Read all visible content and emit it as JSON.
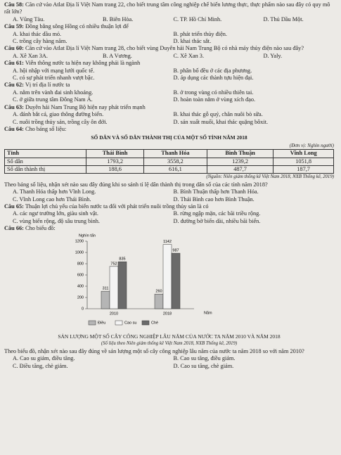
{
  "questions": [
    {
      "label": "Câu 58:",
      "stem": "Căn cứ vào Atlat Địa lí Việt Nam trang 22, cho biết trung tâm công nghiệp chế biến lương thực, thực phẩm nào sau đây có quy mô rất lớn?",
      "options": [
        "A. Vũng Tàu.",
        "B. Biên Hòa.",
        "C. TP. Hồ Chí Minh.",
        "D. Thủ Dầu Một."
      ]
    },
    {
      "label": "Câu 59:",
      "stem": "Đồng bằng sông Hồng có nhiều thuận lợi để",
      "options": [
        "A. khai thác dầu mỏ.",
        "B. phát triển thủy điện.",
        "C. trồng cây hàng năm.",
        "D. khai thác sắt."
      ]
    },
    {
      "label": "Câu 60:",
      "stem": "Căn cứ vào Atlat Địa lí Việt Nam trang 28, cho biết vùng Duyên hải Nam Trung Bộ có nhà máy thủy điện nào sau đây?",
      "options": [
        "A. Xê Xan 3A.",
        "B. A Vương.",
        "C. Xê Xan 3.",
        "D. Yaly."
      ]
    },
    {
      "label": "Câu 61:",
      "stem": "Viễn thông nước ta hiện nay không phải là ngành",
      "options": [
        "A. hội nhập với mạng lưới quốc tế.",
        "B. phân bố đều ở các địa phương.",
        "C. có sự phát triển nhanh vượt bậc.",
        "D. áp dụng các thành tựu hiện đại."
      ]
    },
    {
      "label": "Câu 62:",
      "stem": "Vị trí địa lí nước ta",
      "options": [
        "A. nằm trên vành đai sinh khoáng.",
        "B. ở trong vùng có nhiều thiên tai.",
        "C. ở giữa trung tâm Đông Nam Á.",
        "D. hoàn toàn nằm ở vùng xích đạo."
      ]
    },
    {
      "label": "Câu 63:",
      "stem": "Duyên hải Nam Trung Bộ hiện nay phát triển mạnh",
      "options": [
        "A. đánh bắt cá, giao thông đường biển.",
        "B. khai thác gỗ quý, chăn nuôi bò sữa.",
        "C. nuôi trồng thủy sản, trồng cây ôn đới.",
        "D. sản xuất muối, khai thác quặng bôxit."
      ]
    },
    {
      "label": "Câu 64:",
      "stem": "Cho bảng số liệu:",
      "table": {
        "title": "SỐ DÂN VÀ SỐ DÂN THÀNH THỊ CỦA MỘT SỐ TỈNH NĂM 2018",
        "unit": "(Đơn vị: Nghìn người)",
        "header": [
          "Tỉnh",
          "Thái Bình",
          "Thanh Hóa",
          "Bình Thuận",
          "Vĩnh Long"
        ],
        "rows": [
          [
            "Số dân",
            "1793,2",
            "3558,2",
            "1239,2",
            "1051,8"
          ],
          [
            "Số dân thành thị",
            "188,6",
            "616,1",
            "487,7",
            "187,7"
          ]
        ],
        "source": "(Nguồn: Niên giám thống kê Việt Nam 2018, NXB Thống kê, 2019)"
      },
      "question": "Theo bảng số liệu, nhận xét nào sau đây đúng khi so sánh tỉ lệ dân thành thị trong dân số của các tỉnh năm 2018?",
      "options": [
        "A. Thanh Hóa thấp hơn Vĩnh Long.",
        "B. Bình Thuận thấp hơn Thanh Hóa.",
        "C. Vĩnh Long cao hơn Thái Bình.",
        "D. Thái Bình cao hơn Bình Thuận."
      ]
    },
    {
      "label": "Câu 65:",
      "stem": "Thuận lợi chủ yếu của biển nước ta đối với phát triển nuôi trồng thủy sản là có",
      "options": [
        "A. các ngư trường lớn, giàu sinh vật.",
        "B. rừng ngập mặn, các bãi triều rộng.",
        "C. vùng biển rộng, độ sâu trung bình.",
        "D. đường bờ biển dài, nhiều bãi biển."
      ]
    },
    {
      "label": "Câu 66:",
      "stem": "Cho biểu đồ:",
      "chart_data": {
        "type": "bar",
        "title": "SẢN LƯỢNG MỘT SỐ CÂY CÔNG NGHIỆP LÂU NĂM CỦA NƯỚC TA NĂM 2010 VÀ NĂM 2018",
        "subtitle": "(Số liệu theo Niên giám thống kê Việt Nam 2018, NXB Thống kê, 2019)",
        "y_label": "Nghìn tấn",
        "x_label": "Năm",
        "categories": [
          "2010",
          "2018"
        ],
        "series": [
          {
            "name": "Điều",
            "color": "#b5b5b5",
            "values": [
              311,
              260
            ]
          },
          {
            "name": "Cao su",
            "color": "#f4f4f4",
            "values": [
              752,
              1142
            ]
          },
          {
            "name": "Chè",
            "color": "#6a6a6a",
            "values": [
              835,
              987
            ]
          }
        ],
        "ylim": [
          0,
          1200
        ],
        "yticks": [
          0,
          200,
          400,
          600,
          800,
          1000,
          1200
        ]
      },
      "question": "Theo biểu đồ, nhận xét nào sau đây đúng về sản lượng một số cây công nghiệp lâu năm của nước ta năm 2018 so với năm 2010?",
      "options": [
        "A. Cao su giảm, điều tăng.",
        "B. Cao su tăng, điều giảm.",
        "C. Điều tăng, chè giảm.",
        "D. Cao su tăng, chè giảm."
      ]
    }
  ]
}
